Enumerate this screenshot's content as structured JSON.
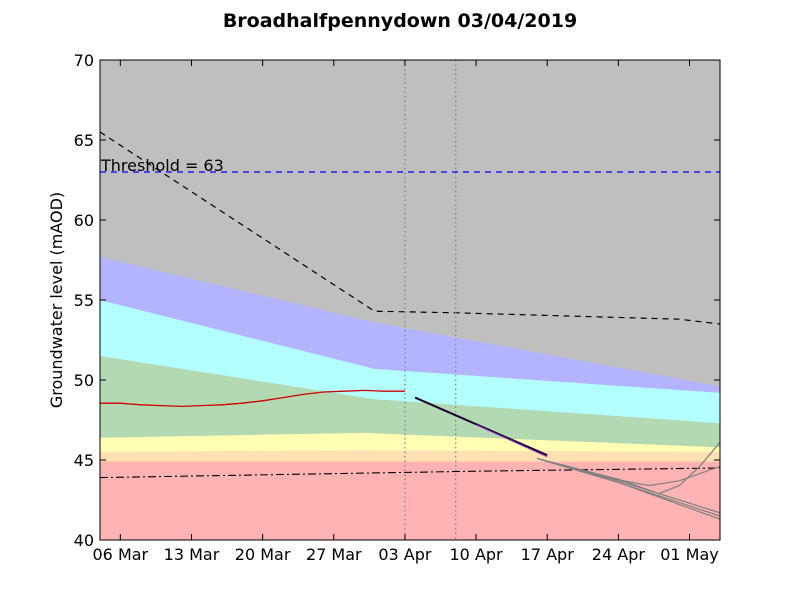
{
  "chart_data": {
    "type": "area",
    "title": "Broadhalfpennydown 03/04/2019",
    "xlabel": "",
    "ylabel": "Groundwater level (mAOD)",
    "x_range": [
      "2019-03-04",
      "2019-05-04"
    ],
    "ylim": [
      40,
      70
    ],
    "y_ticks": [
      40,
      45,
      50,
      55,
      60,
      65,
      70
    ],
    "x_ticks": [
      {
        "date": "2019-03-06",
        "label": "06 Mar"
      },
      {
        "date": "2019-03-13",
        "label": "13 Mar"
      },
      {
        "date": "2019-03-20",
        "label": "20 Mar"
      },
      {
        "date": "2019-03-27",
        "label": "27 Mar"
      },
      {
        "date": "2019-04-03",
        "label": "03 Apr"
      },
      {
        "date": "2019-04-10",
        "label": "10 Apr"
      },
      {
        "date": "2019-04-17",
        "label": "17 Apr"
      },
      {
        "date": "2019-04-24",
        "label": "24 Apr"
      },
      {
        "date": "2019-05-01",
        "label": "01 May"
      }
    ],
    "background_color": "#bfbfbf",
    "bands": [
      {
        "color": "#ffb3b3",
        "lower": [
          [
            "2019-03-04",
            40
          ],
          [
            "2019-05-04",
            40
          ]
        ],
        "upper": [
          [
            "2019-03-04",
            44.9
          ],
          [
            "2019-05-04",
            44.9
          ]
        ]
      },
      {
        "color": "#ffe0b3",
        "lower": [
          [
            "2019-03-04",
            44.9
          ],
          [
            "2019-05-04",
            44.9
          ]
        ],
        "upper": [
          [
            "2019-03-04",
            45.5
          ],
          [
            "2019-03-30",
            45.6
          ],
          [
            "2019-05-04",
            45.5
          ]
        ]
      },
      {
        "color": "#ffffb3",
        "lower": [
          [
            "2019-03-04",
            45.5
          ],
          [
            "2019-03-30",
            45.6
          ],
          [
            "2019-05-04",
            45.5
          ]
        ],
        "upper": [
          [
            "2019-03-04",
            46.4
          ],
          [
            "2019-03-30",
            46.7
          ],
          [
            "2019-05-04",
            45.8
          ]
        ]
      },
      {
        "color": "#b3d9b3",
        "lower": [
          [
            "2019-03-04",
            46.4
          ],
          [
            "2019-03-30",
            46.7
          ],
          [
            "2019-05-04",
            45.8
          ]
        ],
        "upper": [
          [
            "2019-03-04",
            51.5
          ],
          [
            "2019-03-31",
            48.8
          ],
          [
            "2019-05-04",
            47.3
          ]
        ]
      },
      {
        "color": "#b3ffff",
        "lower": [
          [
            "2019-03-04",
            51.5
          ],
          [
            "2019-03-31",
            48.8
          ],
          [
            "2019-05-04",
            47.3
          ]
        ],
        "upper": [
          [
            "2019-03-04",
            55.0
          ],
          [
            "2019-03-31",
            50.7
          ],
          [
            "2019-05-04",
            49.2
          ]
        ]
      },
      {
        "color": "#b3b3ff",
        "lower": [
          [
            "2019-03-04",
            55.0
          ],
          [
            "2019-03-31",
            50.7
          ],
          [
            "2019-05-04",
            49.2
          ]
        ],
        "upper": [
          [
            "2019-03-04",
            57.7
          ],
          [
            "2019-03-31",
            53.6
          ],
          [
            "2019-05-04",
            49.6
          ]
        ]
      }
    ],
    "threshold": {
      "value": 63,
      "label": "Threshold = 63",
      "color": "#0000ff"
    },
    "vertical_lines": [
      "2019-04-03",
      "2019-04-08"
    ],
    "upper_dashed": [
      [
        "2019-03-04",
        65.5
      ],
      [
        "2019-03-31",
        54.3
      ],
      [
        "2019-04-08",
        54.2
      ],
      [
        "2019-04-30",
        53.8
      ],
      [
        "2019-05-04",
        53.5
      ]
    ],
    "lower_dashdot": [
      [
        "2019-03-04",
        43.9
      ],
      [
        "2019-04-10",
        44.3
      ],
      [
        "2019-05-04",
        44.5
      ]
    ],
    "observed": {
      "color": "#cc0000",
      "points": [
        [
          "2019-03-04",
          48.55
        ],
        [
          "2019-03-06",
          48.55
        ],
        [
          "2019-03-08",
          48.45
        ],
        [
          "2019-03-10",
          48.4
        ],
        [
          "2019-03-12",
          48.35
        ],
        [
          "2019-03-14",
          48.4
        ],
        [
          "2019-03-16",
          48.45
        ],
        [
          "2019-03-18",
          48.55
        ],
        [
          "2019-03-20",
          48.7
        ],
        [
          "2019-03-22",
          48.9
        ],
        [
          "2019-03-24",
          49.1
        ],
        [
          "2019-03-26",
          49.25
        ],
        [
          "2019-03-28",
          49.3
        ],
        [
          "2019-03-30",
          49.35
        ],
        [
          "2019-04-01",
          49.3
        ],
        [
          "2019-04-03",
          49.3
        ]
      ]
    },
    "forecast": {
      "color": "#1a0033",
      "points": [
        [
          "2019-04-04",
          48.9
        ],
        [
          "2019-04-17",
          45.3
        ]
      ]
    },
    "forecast_overlay": {
      "color": "#9933cc",
      "points": [
        [
          "2019-04-10",
          47.2
        ],
        [
          "2019-04-17",
          45.2
        ]
      ]
    },
    "scenarios": [
      {
        "color": "#808080",
        "points": [
          [
            "2019-04-16",
            45.1
          ],
          [
            "2019-04-24",
            43.6
          ],
          [
            "2019-05-04",
            41.3
          ]
        ]
      },
      {
        "color": "#808080",
        "points": [
          [
            "2019-04-16",
            45.1
          ],
          [
            "2019-04-24",
            43.6
          ],
          [
            "2019-05-04",
            41.5
          ]
        ]
      },
      {
        "color": "#808080",
        "points": [
          [
            "2019-04-16",
            45.1
          ],
          [
            "2019-04-24",
            43.7
          ],
          [
            "2019-05-04",
            41.7
          ]
        ]
      },
      {
        "color": "#808080",
        "points": [
          [
            "2019-04-16",
            45.1
          ],
          [
            "2019-04-22",
            44.0
          ],
          [
            "2019-04-27",
            43.4
          ],
          [
            "2019-04-30",
            43.7
          ],
          [
            "2019-05-04",
            44.6
          ]
        ]
      },
      {
        "color": "#808080",
        "points": [
          [
            "2019-04-16",
            45.1
          ],
          [
            "2019-04-24",
            43.8
          ],
          [
            "2019-04-28",
            42.9
          ],
          [
            "2019-04-30",
            43.4
          ],
          [
            "2019-05-02",
            44.6
          ],
          [
            "2019-05-04",
            46.1
          ]
        ]
      }
    ]
  }
}
